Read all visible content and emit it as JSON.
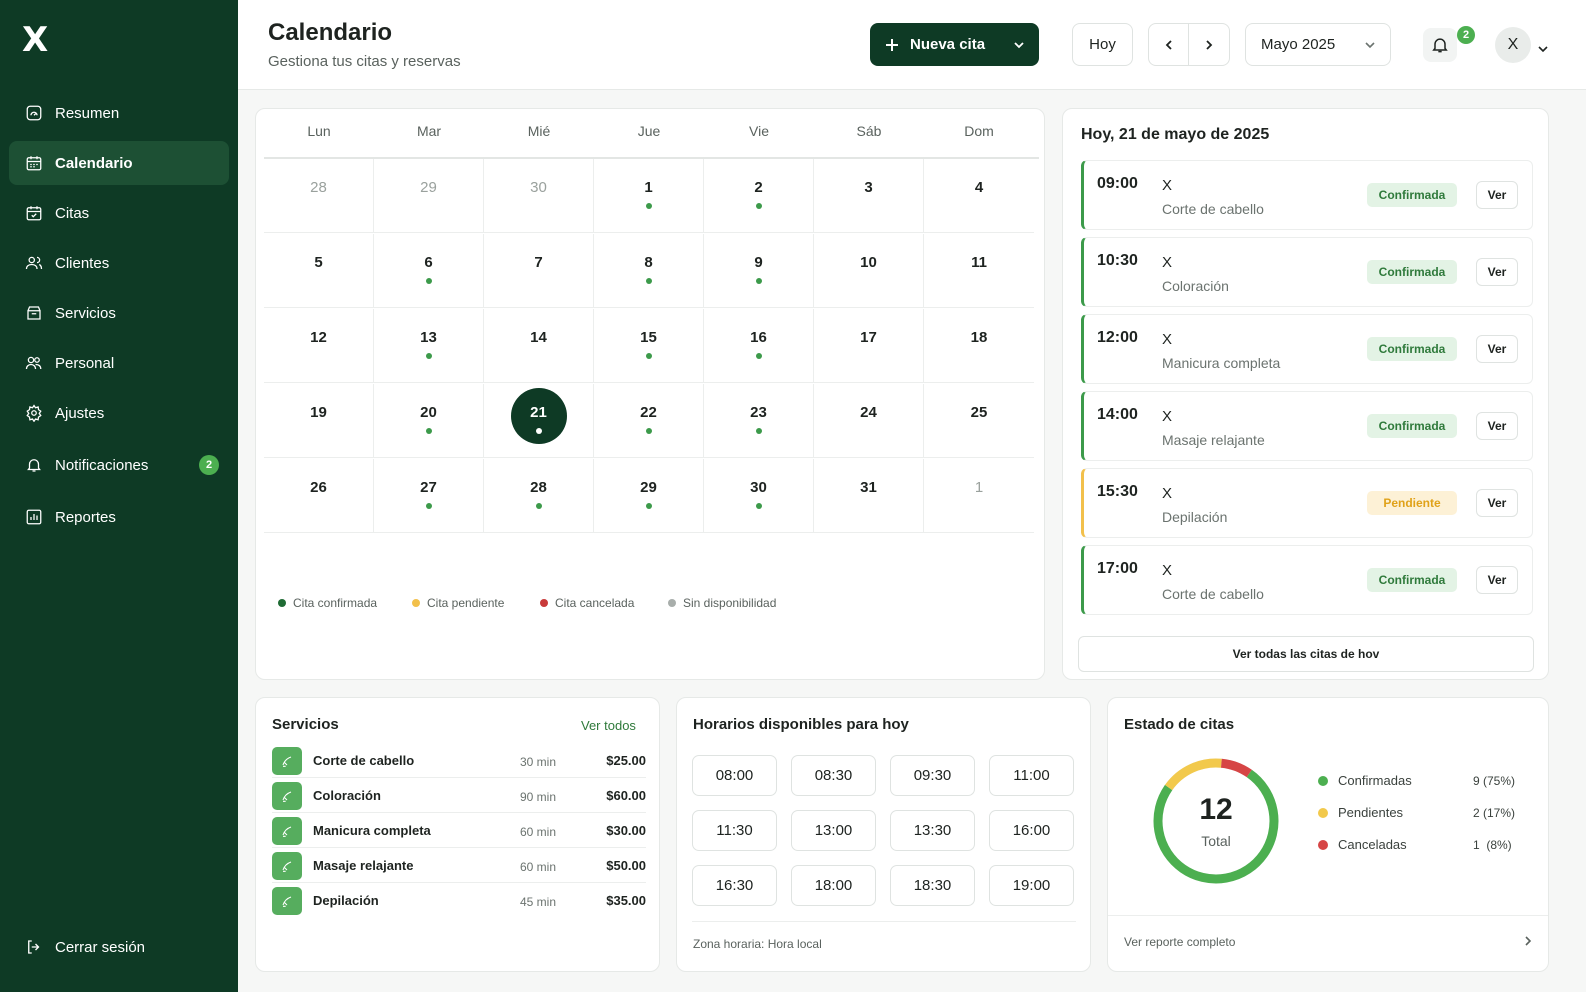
{
  "app": {
    "logo": "X"
  },
  "sidebar": {
    "items": [
      {
        "label": "Resumen",
        "icon": "dashboard-icon"
      },
      {
        "label": "Calendario",
        "icon": "calendar-icon",
        "active": true
      },
      {
        "label": "Citas",
        "icon": "appointments-icon"
      },
      {
        "label": "Clientes",
        "icon": "clients-icon"
      },
      {
        "label": "Servicios",
        "icon": "services-icon"
      },
      {
        "label": "Personal",
        "icon": "staff-icon"
      },
      {
        "label": "Ajustes",
        "icon": "settings-icon"
      },
      {
        "label": "Notificaciones",
        "icon": "bell-icon",
        "badge": "2"
      },
      {
        "label": "Reportes",
        "icon": "reports-icon"
      }
    ],
    "logout": "Cerrar sesión"
  },
  "header": {
    "title": "Calendario",
    "subtitle": "Gestiona tus citas y reservas",
    "new_button": "Nueva cita",
    "today_button": "Hoy",
    "month_select": "Mayo 2025",
    "notif_count": "2",
    "avatar": "X"
  },
  "calendar": {
    "weekdays": [
      "Lun",
      "Mar",
      "Mié",
      "Jue",
      "Vie",
      "Sáb",
      "Dom"
    ],
    "weeks": [
      [
        {
          "d": "28",
          "m": true
        },
        {
          "d": "29",
          "m": true
        },
        {
          "d": "30",
          "m": true
        },
        {
          "d": "1",
          "dot": true
        },
        {
          "d": "2",
          "dot": true
        },
        {
          "d": "3"
        },
        {
          "d": "4"
        }
      ],
      [
        {
          "d": "5"
        },
        {
          "d": "6",
          "dot": true
        },
        {
          "d": "7"
        },
        {
          "d": "8",
          "dot": true
        },
        {
          "d": "9",
          "dot": true
        },
        {
          "d": "10"
        },
        {
          "d": "11"
        }
      ],
      [
        {
          "d": "12"
        },
        {
          "d": "13",
          "dot": true
        },
        {
          "d": "14"
        },
        {
          "d": "15",
          "dot": true
        },
        {
          "d": "16",
          "dot": true
        },
        {
          "d": "17"
        },
        {
          "d": "18"
        }
      ],
      [
        {
          "d": "19"
        },
        {
          "d": "20",
          "dot": true
        },
        {
          "d": "21",
          "dot": true,
          "today": true
        },
        {
          "d": "22",
          "dot": true
        },
        {
          "d": "23",
          "dot": true
        },
        {
          "d": "24"
        },
        {
          "d": "25"
        }
      ],
      [
        {
          "d": "26"
        },
        {
          "d": "27",
          "dot": true
        },
        {
          "d": "28",
          "dot": true
        },
        {
          "d": "29",
          "dot": true
        },
        {
          "d": "30",
          "dot": true
        },
        {
          "d": "31"
        },
        {
          "d": "1",
          "m": true
        }
      ]
    ],
    "legend": [
      {
        "label": "Cita confirmada",
        "color": "#1f6b34"
      },
      {
        "label": "Cita pendiente",
        "color": "#f2c04b"
      },
      {
        "label": "Cita cancelada",
        "color": "#c83a3a"
      },
      {
        "label": "Sin disponibilidad",
        "color": "#a8aeab"
      }
    ]
  },
  "today_panel": {
    "title": "Hoy, 21 de mayo de 2025",
    "view_label": "Ver",
    "all_link": "Ver todas las citas de hov",
    "appointments": [
      {
        "time": "09:00",
        "client": "X",
        "service": "Corte de cabello",
        "status": "Confirmada",
        "pending": false
      },
      {
        "time": "10:30",
        "client": "X",
        "service": "Coloración",
        "status": "Confirmada",
        "pending": false
      },
      {
        "time": "12:00",
        "client": "X",
        "service": "Manicura completa",
        "status": "Confirmada",
        "pending": false
      },
      {
        "time": "14:00",
        "client": "X",
        "service": "Masaje relajante",
        "status": "Confirmada",
        "pending": false
      },
      {
        "time": "15:30",
        "client": "X",
        "service": "Depilación",
        "status": "Pendiente",
        "pending": true
      },
      {
        "time": "17:00",
        "client": "X",
        "service": "Corte de cabello",
        "status": "Confirmada",
        "pending": false
      }
    ]
  },
  "services": {
    "title": "Servicios",
    "view_all": "Ver todos",
    "items": [
      {
        "name": "Corte de cabello",
        "duration": "30 min",
        "price": "$25.00",
        "icon": "scissors-icon"
      },
      {
        "name": "Coloración",
        "duration": "90 min",
        "price": "$60.00",
        "icon": "brush-icon"
      },
      {
        "name": "Manicura completa",
        "duration": "60 min",
        "price": "$30.00",
        "icon": "hand-icon"
      },
      {
        "name": "Masaje relajante",
        "duration": "60 min",
        "price": "$50.00",
        "icon": "massage-icon"
      },
      {
        "name": "Depilación",
        "duration": "45 min",
        "price": "$35.00",
        "icon": "leaf-icon"
      }
    ]
  },
  "slots": {
    "title": "Horarios disponibles para hoy",
    "times": [
      "08:00",
      "08:30",
      "09:30",
      "11:00",
      "11:30",
      "13:00",
      "13:30",
      "16:00",
      "16:30",
      "18:00",
      "18:30",
      "19:00"
    ],
    "timezone": "Zona horaria: Hora local"
  },
  "status": {
    "title": "Estado de citas",
    "total": "12",
    "total_label": "Total",
    "report_link": "Ver reporte completo",
    "items": [
      {
        "label": "Confirmadas",
        "value": "9 (75%)",
        "count": 9,
        "color": "#4caf50"
      },
      {
        "label": "Pendientes",
        "value": "2 (17%)",
        "count": 2,
        "color": "#f2c94c"
      },
      {
        "label": "Canceladas",
        "value": "1  (8%)",
        "count": 1,
        "color": "#d64545"
      }
    ]
  }
}
